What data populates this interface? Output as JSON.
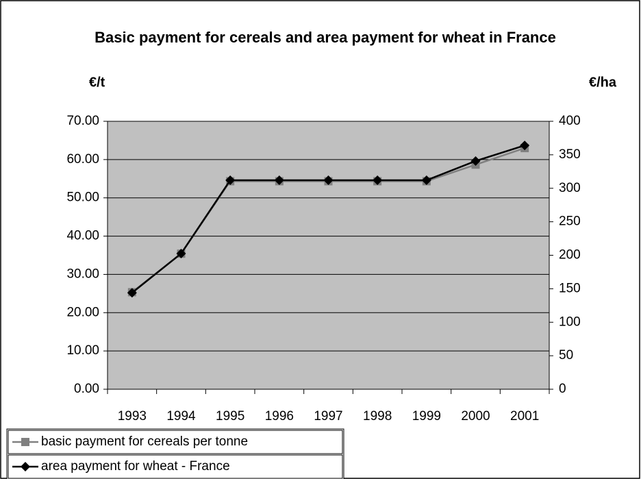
{
  "chart_data": {
    "type": "line",
    "title": "Basic payment for cereals and area payment for wheat in France",
    "y_label": "€/t",
    "y2_label": "€/ha",
    "categories": [
      "1993",
      "1994",
      "1995",
      "1996",
      "1997",
      "1998",
      "1999",
      "2000",
      "2001"
    ],
    "series": [
      {
        "name": "basic payment for cereals per tonne",
        "color": "#808080",
        "marker": "square",
        "values": [
          25.35,
          35.42,
          54.34,
          54.34,
          54.34,
          54.34,
          54.34,
          58.67,
          63.0
        ]
      },
      {
        "name": "area payment for wheat - France",
        "color": "#000000",
        "marker": "diamond",
        "axis": "y2",
        "values": [
          144,
          202.6,
          312,
          312,
          312,
          312,
          312,
          340.7,
          364
        ]
      }
    ],
    "ylim": [
      0,
      70
    ],
    "yticks": [
      {
        "value": 0,
        "label": "0.00"
      },
      {
        "value": 10,
        "label": "10.00"
      },
      {
        "value": 20,
        "label": "20.00"
      },
      {
        "value": 30,
        "label": "30.00"
      },
      {
        "value": 40,
        "label": "40.00"
      },
      {
        "value": 50,
        "label": "50.00"
      },
      {
        "value": 60,
        "label": "60.00"
      },
      {
        "value": 70,
        "label": "70.00"
      }
    ],
    "y2lim": [
      0,
      400
    ],
    "y2ticks": [
      0,
      50,
      100,
      150,
      200,
      250,
      300,
      350,
      400
    ],
    "grid": true,
    "plot_background": "#c0c0c0",
    "legend": "bottom-left"
  }
}
